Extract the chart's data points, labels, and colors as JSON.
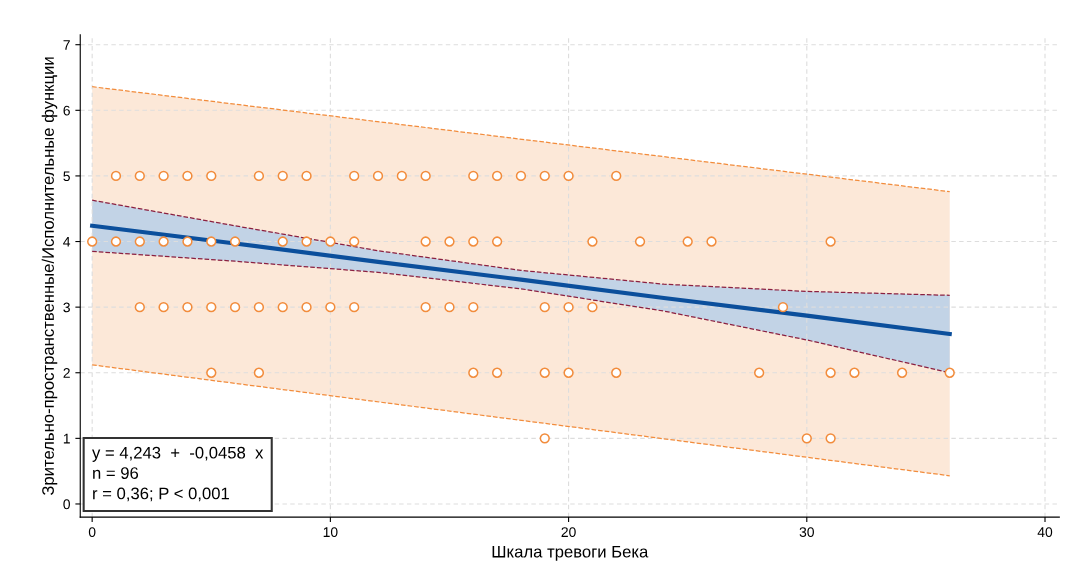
{
  "chart_data": {
    "type": "scatter",
    "xlabel": "Шкала тревоги Бека",
    "ylabel": "Зрительно-пространственные/Исполнительные функции",
    "xlim": [
      -0.5,
      40.6
    ],
    "ylim": [
      -0.2,
      7.15
    ],
    "xticks": [
      0,
      10,
      20,
      30,
      40
    ],
    "yticks": [
      0,
      1,
      2,
      3,
      4,
      5,
      6,
      7
    ],
    "grid": true,
    "marker": "circle",
    "annotations": [
      "y = 4,243  +  -0,0458  x\nn = 96\nr = 0,36; P < 0,001"
    ],
    "series": [
      {
        "type": "line",
        "color": "#f28c3c",
        "line_style": "dashed",
        "marker": "none",
        "x": [
          0,
          36
        ],
        "values": [
          6.36,
          4.76
        ]
      },
      {
        "type": "line",
        "color": "#f28c3c",
        "line_style": "dashed",
        "marker": "none",
        "x": [
          0,
          36
        ],
        "values": [
          2.12,
          0.43
        ],
        "lower": [
          2.12,
          0.43
        ],
        "upper": [
          6.36,
          4.76
        ]
      },
      {
        "type": "line",
        "color": "#8b2040",
        "line_style": "dashed",
        "marker": "none",
        "x": [
          0,
          6,
          12,
          18,
          24,
          30,
          36
        ],
        "values": [
          4.63,
          4.24,
          3.86,
          3.56,
          3.35,
          3.24,
          3.18
        ]
      },
      {
        "type": "line",
        "color": "#8b2040",
        "line_style": "dashed",
        "marker": "none",
        "x": [
          0,
          6,
          12,
          18,
          24,
          30,
          36
        ],
        "values": [
          3.85,
          3.7,
          3.53,
          3.28,
          2.94,
          2.5,
          2.0
        ]
      },
      {
        "type": "line",
        "color": "#0b4f9c",
        "line_style": "solid",
        "marker": "none",
        "x": [
          0,
          6,
          12,
          18,
          24,
          30,
          36
        ],
        "values": [
          4.24,
          3.97,
          3.69,
          3.42,
          3.14,
          2.87,
          2.59
        ],
        "lower": [
          3.85,
          3.7,
          3.53,
          3.28,
          2.94,
          2.5,
          2.0
        ],
        "upper": [
          4.63,
          4.24,
          3.86,
          3.56,
          3.35,
          3.24,
          3.18
        ]
      },
      {
        "color": "#f28c3c",
        "x": [
          1,
          2,
          3,
          4,
          5,
          7,
          8,
          9,
          11,
          12,
          13,
          14,
          16,
          17,
          18,
          19,
          20,
          22,
          0,
          1,
          2,
          3,
          4,
          5,
          6,
          8,
          9,
          10,
          11,
          14,
          15,
          16,
          17,
          21,
          23,
          25,
          26,
          31,
          2,
          3,
          4,
          5,
          6,
          7,
          8,
          9,
          10,
          11,
          14,
          15,
          16,
          19,
          20,
          21,
          29,
          5,
          7,
          16,
          17,
          19,
          20,
          22,
          28,
          31,
          32,
          34,
          36,
          19,
          30,
          31
        ],
        "values": [
          5,
          5,
          5,
          5,
          5,
          5,
          5,
          5,
          5,
          5,
          5,
          5,
          5,
          5,
          5,
          5,
          5,
          5,
          4,
          4,
          4,
          4,
          4,
          4,
          4,
          4,
          4,
          4,
          4,
          4,
          4,
          4,
          4,
          4,
          4,
          4,
          4,
          4,
          3,
          3,
          3,
          3,
          3,
          3,
          3,
          3,
          3,
          3,
          3,
          3,
          3,
          3,
          3,
          3,
          3,
          2,
          2,
          2,
          2,
          2,
          2,
          2,
          2,
          2,
          2,
          2,
          2,
          1,
          1,
          1
        ]
      }
    ]
  }
}
